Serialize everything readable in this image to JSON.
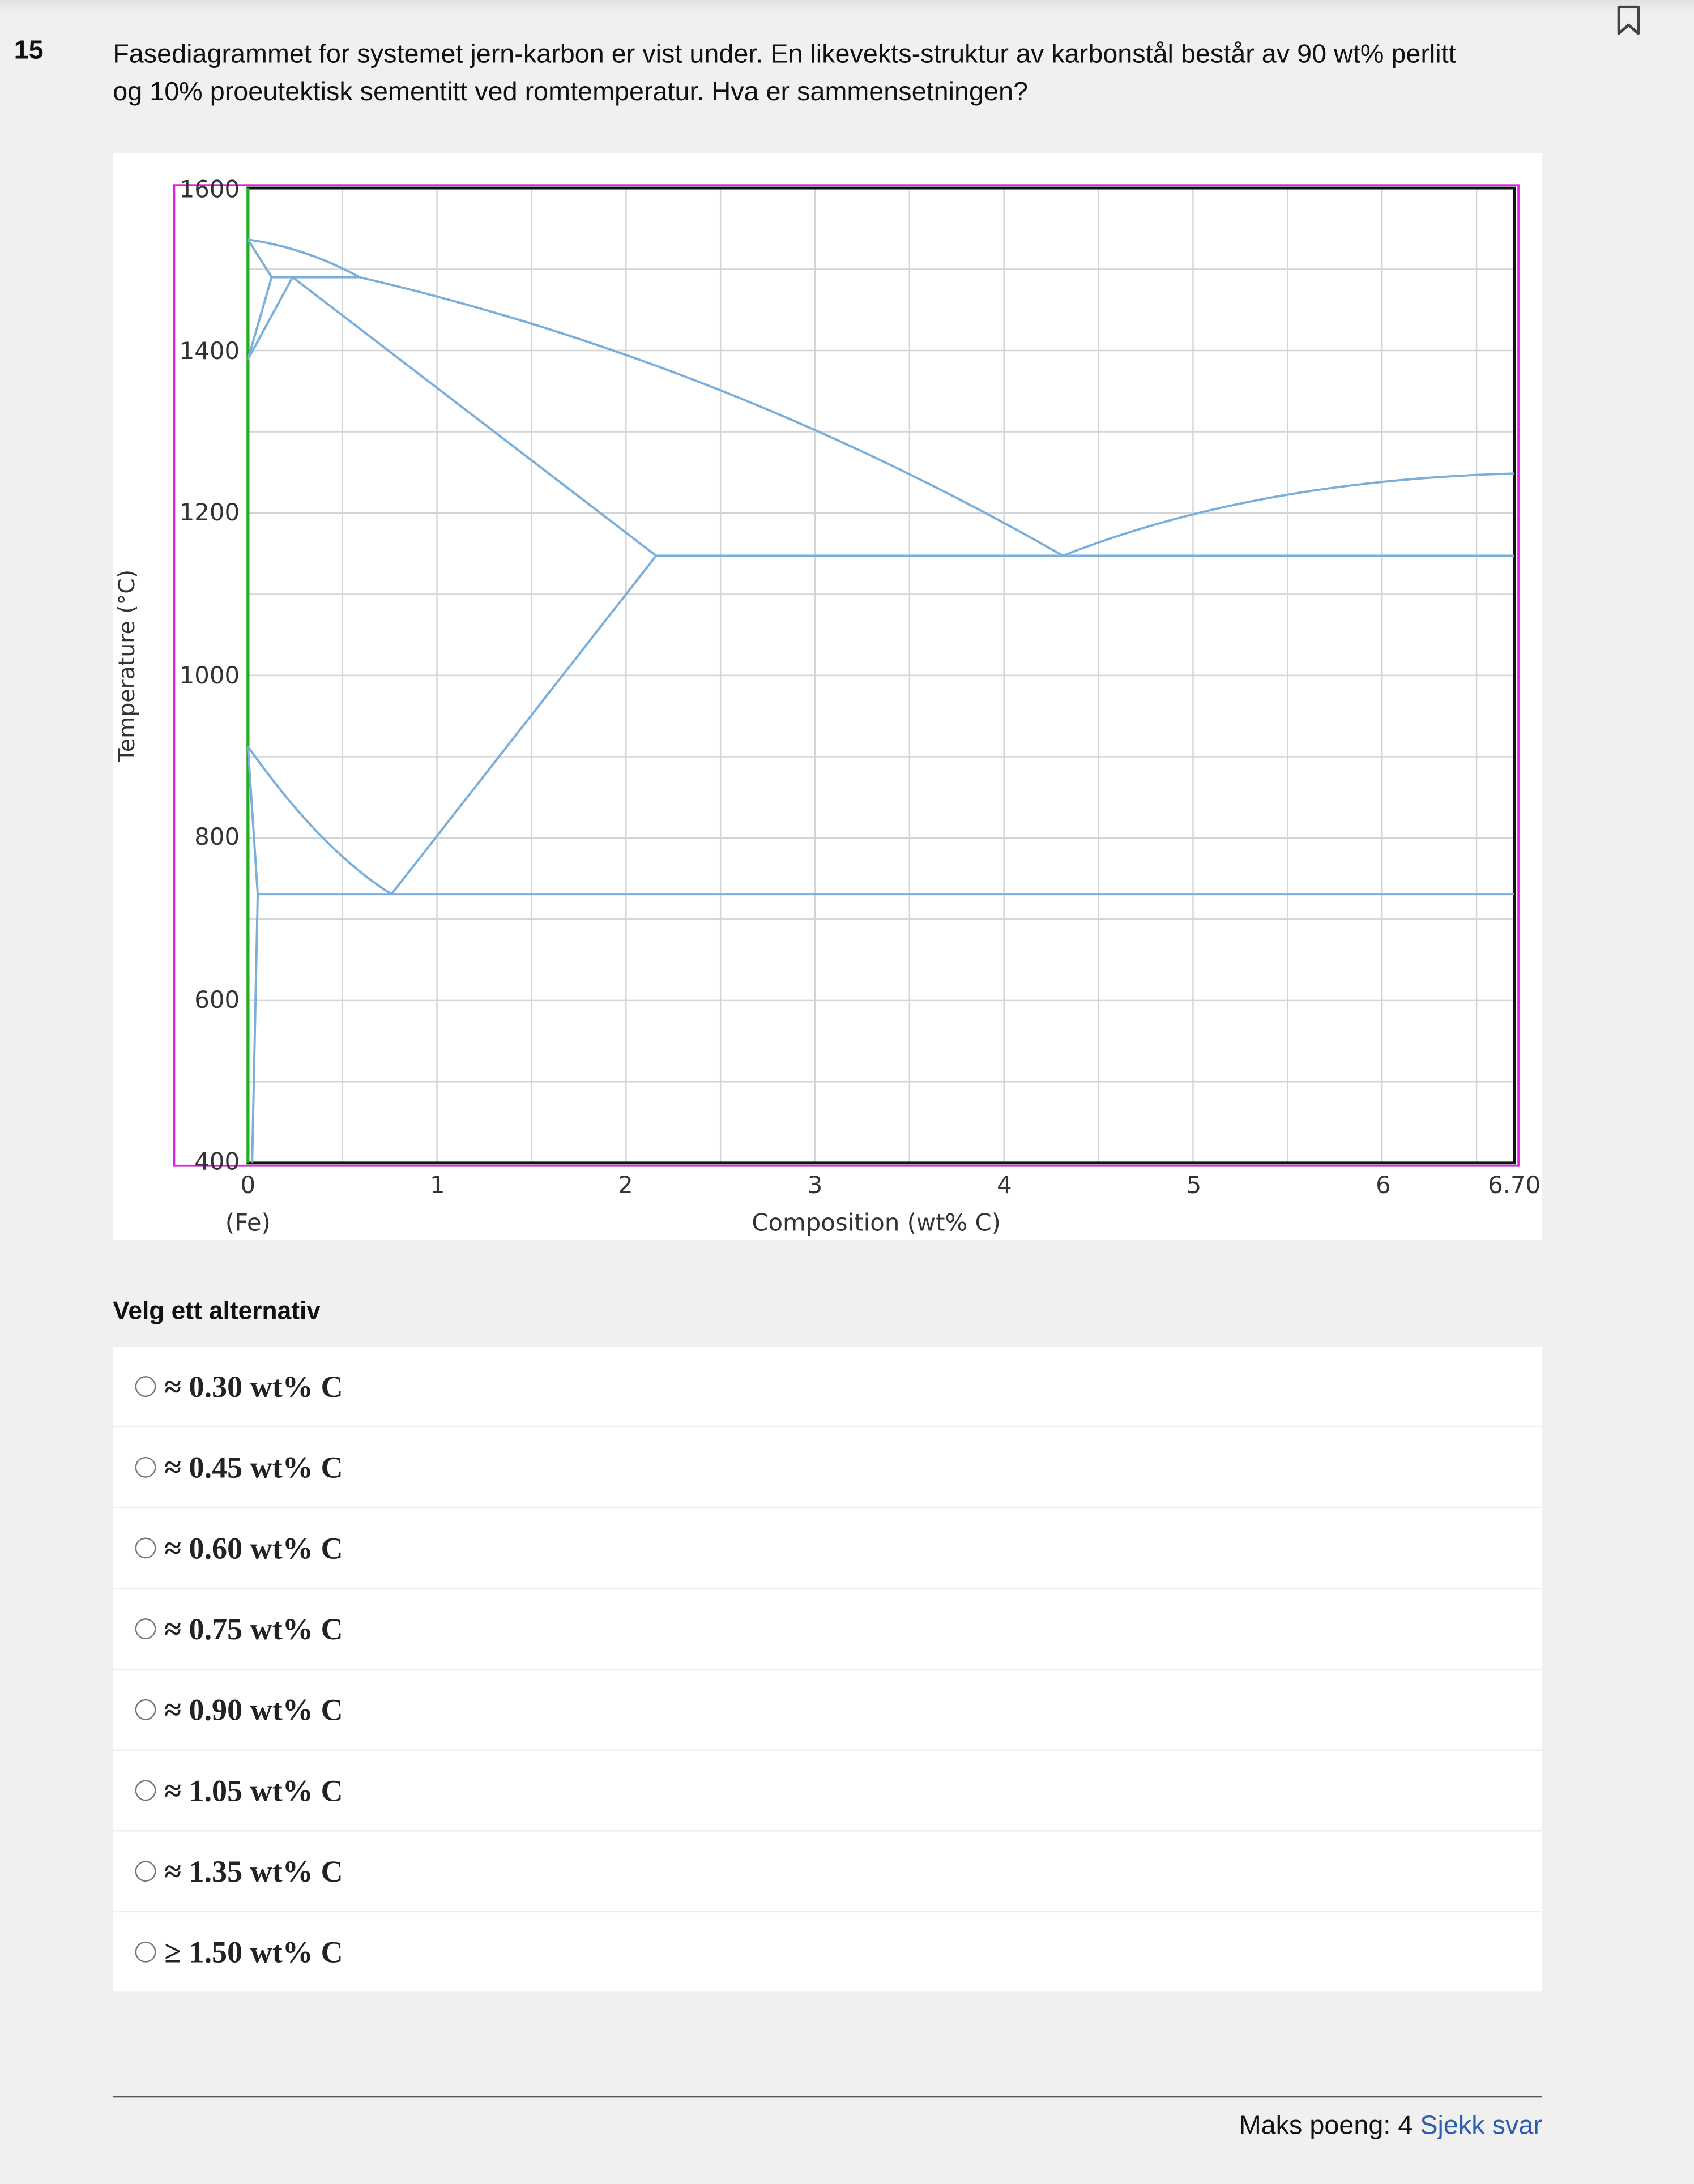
{
  "question": {
    "number": "15",
    "text": "Fasediagrammet for systemet jern-karbon er vist under. En likevekts-struktur av karbonstål består av 90 wt% perlitt og 10% proeutektisk sementitt ved romtemperatur. Hva er sammensetningen?"
  },
  "figure": {
    "y_label": "Temperature (°C)",
    "x_label": "Composition (wt% C)",
    "x_origin_label": "(Fe)",
    "yticks": [
      "1600",
      "1400",
      "1200",
      "1000",
      "800",
      "600",
      "400"
    ],
    "xticks": [
      "0",
      "1",
      "2",
      "3",
      "4",
      "5",
      "6",
      "6.70"
    ]
  },
  "prompt": "Velg ett alternativ",
  "options": [
    "≈ 0.30 wt% C",
    "≈ 0.45 wt% C",
    "≈ 0.60 wt% C",
    "≈ 0.75 wt% C",
    "≈ 0.90 wt% C",
    "≈ 1.05 wt% C",
    "≈ 1.35 wt% C",
    "≥ 1.50 wt% C"
  ],
  "footer": {
    "max_points": "Maks poeng: 4",
    "check": "Sjekk svar"
  }
}
